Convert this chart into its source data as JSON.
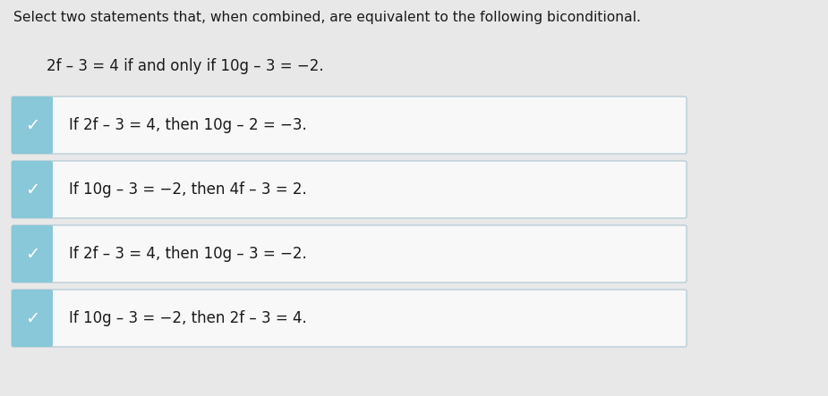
{
  "title_line": "Select two statements that, when combined, are equivalent to the following biconditional.",
  "biconditional": "2f – 3 = 4 if and only if 10g – 3 = −2.",
  "options": [
    "If 2f – 3 = 4, then 10g – 2 = −3.",
    "If 10g – 3 = −2, then 4f – 3 = 2.",
    "If 2f – 3 = 4, then 10g – 3 = −2.",
    "If 10g – 3 = −2, then 2f – 3 = 4."
  ],
  "bg_color": "#e8e8e8",
  "card_bg": "#f8f8f8",
  "card_border": "#b8cdd8",
  "left_bar_color": "#88c8d8",
  "check_color": "#ffffff",
  "title_color": "#1a1a1a",
  "text_color": "#1a1a1a",
  "biconditional_color": "#1a1a1a",
  "fig_width": 9.25,
  "fig_height": 4.43
}
